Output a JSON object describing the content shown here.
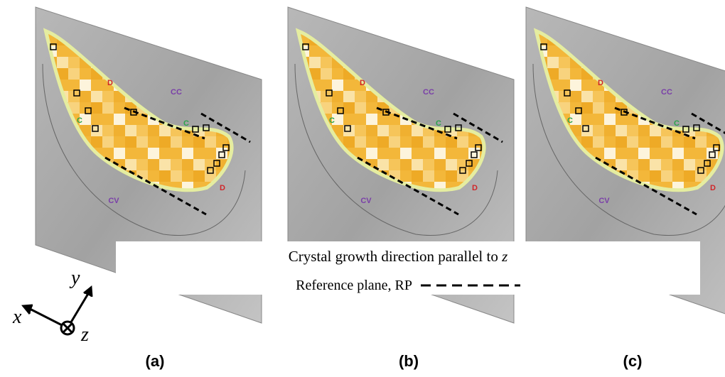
{
  "panels": [
    {
      "label": "(a)",
      "regions": [
        {
          "text": "D",
          "color": "#d0262a"
        },
        {
          "text": "CC",
          "color": "#7a3fa8"
        },
        {
          "text": "C",
          "color": "#2aa44a"
        },
        {
          "text": "C",
          "color": "#2aa44a"
        },
        {
          "text": "CV",
          "color": "#7a3fa8"
        },
        {
          "text": "D",
          "color": "#d0262a"
        }
      ]
    },
    {
      "label": "(b)",
      "regions": [
        {
          "text": "D",
          "color": "#d0262a"
        },
        {
          "text": "CC",
          "color": "#7a3fa8"
        },
        {
          "text": "C",
          "color": "#2aa44a"
        },
        {
          "text": "C",
          "color": "#2aa44a"
        },
        {
          "text": "CV",
          "color": "#7a3fa8"
        },
        {
          "text": "D",
          "color": "#d0262a"
        }
      ]
    },
    {
      "label": "(c)",
      "regions": [
        {
          "text": "D",
          "color": "#d0262a"
        },
        {
          "text": "CC",
          "color": "#7a3fa8"
        },
        {
          "text": "C",
          "color": "#2aa44a"
        },
        {
          "text": "C",
          "color": "#2aa44a"
        },
        {
          "text": "CV",
          "color": "#7a3fa8"
        },
        {
          "text": "D",
          "color": "#d0262a"
        }
      ]
    }
  ],
  "caption": {
    "line1": "Crystal growth direction parallel to",
    "line1_symbol": "z",
    "line2": "Reference plane, RP"
  },
  "axes": {
    "x": "x",
    "y": "y",
    "z": "z"
  }
}
